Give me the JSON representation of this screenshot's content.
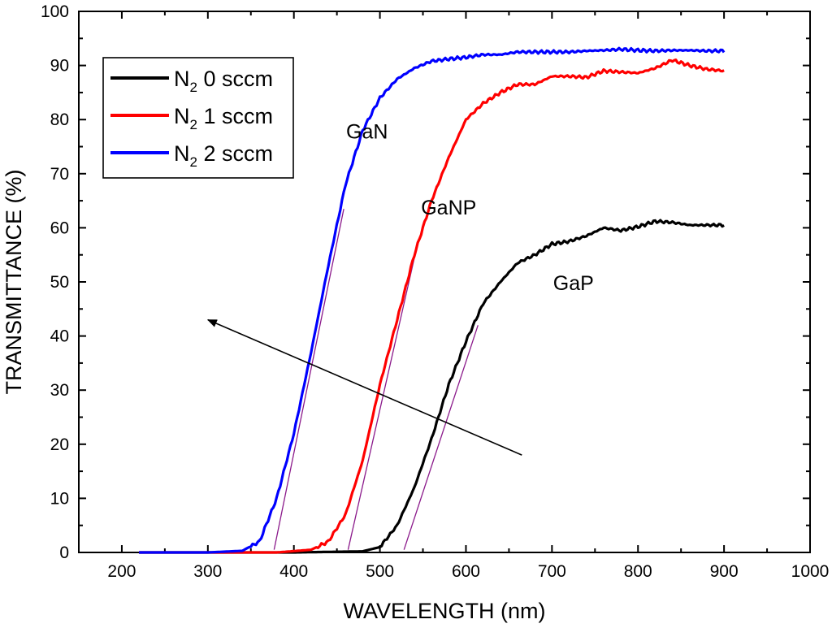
{
  "chart_data": {
    "type": "line",
    "title": "",
    "xlabel": "WAVELENGTH (nm)",
    "ylabel": "TRANSMITTANCE (%)",
    "xlim": [
      150,
      1000
    ],
    "ylim": [
      0,
      100
    ],
    "xticks": [
      200,
      300,
      400,
      500,
      600,
      700,
      800,
      900,
      1000
    ],
    "yticks": [
      0,
      10,
      20,
      30,
      40,
      50,
      60,
      70,
      80,
      90,
      100
    ],
    "grid": false,
    "legend_position": "top-left",
    "series": [
      {
        "name": "N2 0 sccm",
        "legend_main": "N",
        "legend_sub": "2",
        "legend_rest": " 0 sccm",
        "color": "#000000",
        "x": [
          220,
          300,
          400,
          480,
          500,
          520,
          540,
          560,
          580,
          600,
          620,
          640,
          660,
          680,
          700,
          720,
          740,
          760,
          780,
          800,
          820,
          840,
          860,
          880,
          900
        ],
        "y": [
          0,
          0,
          0,
          0.2,
          1,
          5,
          12,
          21,
          31,
          39,
          46,
          50,
          53.5,
          55,
          57,
          57.5,
          58.5,
          60,
          59.5,
          60.2,
          61.2,
          61,
          60.5,
          60.5,
          60.5
        ]
      },
      {
        "name": "N2 1 sccm",
        "legend_main": "N",
        "legend_sub": "2",
        "legend_rest": " 1 sccm",
        "color": "#ff0000",
        "x": [
          220,
          300,
          380,
          420,
          440,
          460,
          480,
          500,
          520,
          540,
          560,
          580,
          600,
          620,
          640,
          660,
          680,
          700,
          720,
          740,
          760,
          780,
          800,
          820,
          840,
          860,
          880,
          900
        ],
        "y": [
          0,
          0,
          0,
          0.5,
          2,
          7,
          17,
          31,
          43,
          55,
          65,
          73,
          80,
          83,
          85,
          86.5,
          86.5,
          88,
          88,
          87.8,
          89,
          88.8,
          88.6,
          89.5,
          91,
          90,
          89.3,
          89
        ]
      },
      {
        "name": "N2 2 sccm",
        "legend_main": "N",
        "legend_sub": "2",
        "legend_rest": " 2 sccm",
        "color": "#0000ff",
        "x": [
          220,
          300,
          340,
          360,
          380,
          400,
          420,
          440,
          460,
          480,
          500,
          520,
          540,
          560,
          580,
          600,
          620,
          640,
          660,
          680,
          700,
          720,
          740,
          760,
          780,
          800,
          820,
          840,
          860,
          880,
          900
        ],
        "y": [
          0,
          0,
          0.3,
          2,
          10,
          22,
          37,
          53,
          68,
          78,
          84,
          87.5,
          89.5,
          90.8,
          91.2,
          91.5,
          92,
          92,
          92.5,
          92.5,
          92.5,
          92.5,
          92.7,
          92.8,
          93,
          92.8,
          92.7,
          92.8,
          92.8,
          92.7,
          92.7
        ]
      }
    ],
    "tangent_lines": [
      {
        "series": "N2 2 sccm",
        "x": [
          377,
          458
        ],
        "y": [
          0.5,
          63.5
        ]
      },
      {
        "series": "N2 1 sccm",
        "x": [
          463,
          543
        ],
        "y": [
          0.5,
          56.5
        ]
      },
      {
        "series": "N2 0 sccm",
        "x": [
          528,
          614
        ],
        "y": [
          0.5,
          42
        ]
      }
    ],
    "arrow": {
      "from": [
        665,
        18
      ],
      "to": [
        300,
        43
      ]
    },
    "annotations": [
      {
        "text": "GaN",
        "x": 485,
        "y": 76.5
      },
      {
        "text": "GaNP",
        "x": 580,
        "y": 62.5
      },
      {
        "text": "GaP",
        "x": 725,
        "y": 48.5
      }
    ]
  }
}
